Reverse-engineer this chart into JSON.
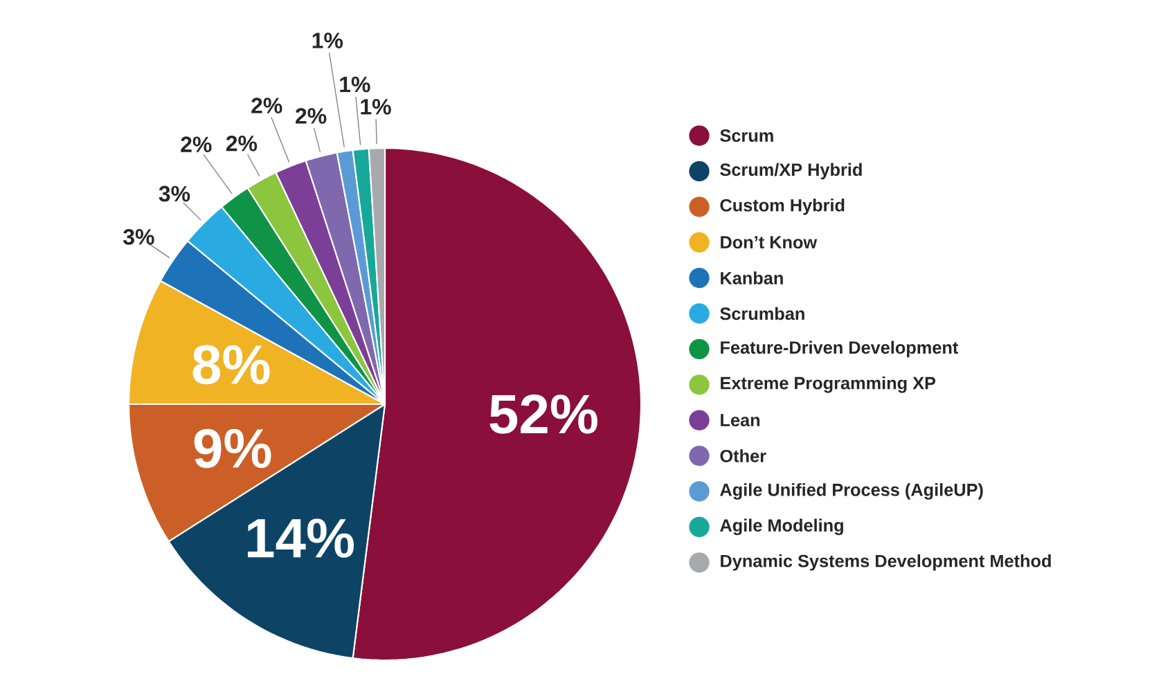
{
  "chart_data": {
    "type": "pie",
    "legend": "right",
    "categories": [
      "Scrum",
      "Scrum/XP Hybrid",
      "Custom Hybrid",
      "Don’t Know",
      "Kanban",
      "Scrumban",
      "Feature-Driven Development",
      "Extreme Programming XP",
      "Lean",
      "Other",
      "Agile Unified Process (AgileUP)",
      "Agile Modeling",
      "Dynamic Systems Development Method"
    ],
    "values": [
      52,
      14,
      9,
      8,
      3,
      3,
      2,
      2,
      2,
      2,
      1,
      1,
      1
    ],
    "value_labels": [
      "52%",
      "14%",
      "9%",
      "8%",
      "3%",
      "3%",
      "2%",
      "2%",
      "2%",
      "2%",
      "1%",
      "1%",
      "1%"
    ],
    "colors": [
      "#8a0f3a",
      "#0d4466",
      "#cc5f27",
      "#f0b323",
      "#1e73b8",
      "#29abe2",
      "#0f9447",
      "#8cc63f",
      "#7b3f98",
      "#7f68ad",
      "#5b9bd5",
      "#17a89a",
      "#a7a9ac"
    ]
  }
}
